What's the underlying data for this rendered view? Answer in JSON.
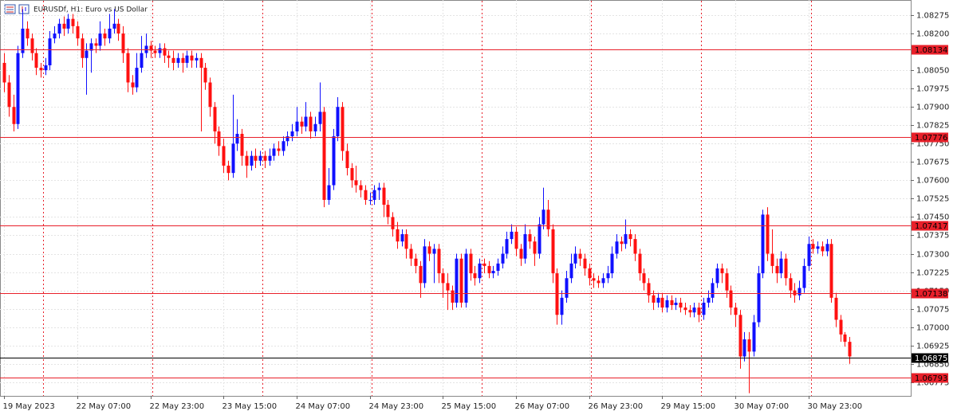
{
  "chart_data": {
    "type": "candlestick",
    "title": "EURUSDf, H1:  Euro vs US Dollar",
    "up_color": "#1010ff",
    "down_color": "#ff1010",
    "level_color": "#e8202a",
    "current_color": "#000000",
    "ylim": [
      1.08337,
      1.06719
    ],
    "xlim": [
      -0.9,
      198.4
    ],
    "yticks": [
      1.08275,
      {
        "value": 1.082,
        "label": "1.08200"
      },
      {
        "value": 1.0805,
        "label": "1.08050"
      },
      1.07975,
      {
        "value": 1.079,
        "label": "1.07900"
      },
      1.07825,
      {
        "value": 1.0775,
        "label": "1.07750"
      },
      1.07675,
      {
        "value": 1.076,
        "label": "1.07600"
      },
      1.07525,
      {
        "value": 1.0745,
        "label": "1.07450"
      },
      1.07375,
      {
        "value": 1.073,
        "label": "1.07300"
      },
      1.07225,
      {
        "value": 1.0715,
        "label": "1.07150"
      },
      1.07075,
      {
        "value": 1.07,
        "label": "1.07000"
      },
      1.06925,
      {
        "value": 1.0685,
        "label": "1.06850"
      },
      1.06775
    ],
    "xticks": [
      {
        "value": 0,
        "label": "19 May 2023"
      },
      {
        "value": 16,
        "label": "22 May 07:00"
      },
      {
        "value": 32,
        "label": "22 May 23:00"
      },
      {
        "value": 48,
        "label": "23 May 15:00"
      },
      {
        "value": 64,
        "label": "24 May 07:00"
      },
      {
        "value": 80,
        "label": "24 May 23:00"
      },
      {
        "value": 96,
        "label": "25 May 15:00"
      },
      {
        "value": 112,
        "label": "26 May 07:00"
      },
      {
        "value": 128,
        "label": "26 May 23:00"
      },
      {
        "value": 144,
        "label": "29 May 15:00"
      },
      {
        "value": 160,
        "label": "30 May 07:00"
      },
      {
        "value": 176,
        "label": "30 May 23:00"
      }
    ],
    "day_separators": [
      8.5,
      32.5,
      56.5,
      80.5,
      104.5,
      128.5,
      152.5,
      176.5
    ],
    "levels": [
      1.08134,
      1.07776,
      1.07417,
      1.07138,
      1.06793
    ],
    "current_price": 1.06875,
    "open": [
      1.0808,
      1.08,
      1.079,
      1.0783,
      1.0812,
      1.0822,
      1.0818,
      1.0812,
      1.0806,
      1.0805,
      1.0807,
      1.0818,
      1.082,
      1.0824,
      1.0822,
      1.0826,
      1.0823,
      1.0818,
      1.081,
      1.0813,
      1.0816,
      1.0815,
      1.082,
      1.0818,
      1.0822,
      1.0824,
      1.082,
      1.0812,
      1.08,
      1.0798,
      1.0806,
      1.0812,
      1.0815,
      1.0813,
      1.0812,
      1.0814,
      1.0811,
      1.081,
      1.0808,
      1.081,
      1.0808,
      1.0811,
      1.0809,
      1.081,
      1.0806,
      1.08,
      1.079,
      1.078,
      1.0774,
      1.0766,
      1.0763,
      1.0775,
      1.0779,
      1.077,
      1.0766,
      1.077,
      1.0768,
      1.077,
      1.0768,
      1.077,
      1.0773,
      1.0772,
      1.0776,
      1.0778,
      1.078,
      1.0784,
      1.0782,
      1.0786,
      1.078,
      1.0783,
      1.0788,
      1.0752,
      1.0758,
      1.0778,
      1.079,
      1.0772,
      1.0765,
      1.076,
      1.0758,
      1.0756,
      1.0752,
      1.0752,
      1.0756,
      1.0757,
      1.075,
      1.0745,
      1.074,
      1.0735,
      1.0738,
      1.0732,
      1.0728,
      1.0725,
      1.0718,
      1.0733,
      1.073,
      1.0732,
      1.0722,
      1.0718,
      1.0715,
      1.071,
      1.0728,
      1.071,
      1.073,
      1.0722,
      1.072,
      1.0726,
      1.0725,
      1.0722,
      1.0723,
      1.0726,
      1.073,
      1.0736,
      1.0739,
      1.0732,
      1.0728,
      1.0738,
      1.0735,
      1.073,
      1.0742,
      1.0748,
      1.074,
      1.0722,
      1.0705,
      1.0712,
      1.072,
      1.0726,
      1.073,
      1.0728,
      1.0724,
      1.072,
      1.0719,
      1.0718,
      1.072,
      1.0722,
      1.073,
      1.0735,
      1.0734,
      1.0738,
      1.0736,
      1.073,
      1.0722,
      1.0718,
      1.0713,
      1.071,
      1.0712,
      1.0708,
      1.0711,
      1.0709,
      1.071,
      1.0708,
      1.0707,
      1.0706,
      1.0708,
      1.0705,
      1.071,
      1.0712,
      1.0718,
      1.0724,
      1.0722,
      1.0715,
      1.0708,
      1.0705,
      1.0688,
      1.0695,
      1.069,
      1.0702,
      1.0722,
      1.0746,
      1.073,
      1.0725,
      1.0722,
      1.0728,
      1.072,
      1.0715,
      1.0713,
      1.0716,
      1.0725,
      1.0734,
      1.0732,
      1.0733,
      1.0731,
      1.0734,
      1.0712,
      1.0703,
      1.0697,
      1.0694
    ],
    "high": [
      1.0812,
      1.0803,
      1.0795,
      1.0815,
      1.083,
      1.0825,
      1.082,
      1.0814,
      1.0808,
      1.081,
      1.0821,
      1.0823,
      1.0826,
      1.0827,
      1.0828,
      1.0828,
      1.0825,
      1.082,
      1.0816,
      1.0818,
      1.0818,
      1.0825,
      1.0822,
      1.0828,
      1.083,
      1.0826,
      1.0823,
      1.0814,
      1.0803,
      1.0812,
      1.0819,
      1.082,
      1.0817,
      1.0815,
      1.0816,
      1.0816,
      1.0813,
      1.0813,
      1.0812,
      1.0812,
      1.0813,
      1.0813,
      1.0812,
      1.0812,
      1.0808,
      1.0802,
      1.0792,
      1.0782,
      1.0777,
      1.0768,
      1.0795,
      1.0785,
      1.0781,
      1.0772,
      1.0772,
      1.0773,
      1.0772,
      1.0772,
      1.0773,
      1.0775,
      1.0776,
      1.0778,
      1.078,
      1.0783,
      1.079,
      1.0786,
      1.0792,
      1.0788,
      1.0786,
      1.08,
      1.079,
      1.0765,
      1.0781,
      1.0794,
      1.0792,
      1.0775,
      1.0767,
      1.0766,
      1.076,
      1.0758,
      1.0755,
      1.0758,
      1.0759,
      1.0759,
      1.0752,
      1.0747,
      1.0743,
      1.074,
      1.074,
      1.0734,
      1.073,
      1.0727,
      1.0736,
      1.0735,
      1.0734,
      1.0734,
      1.0724,
      1.0722,
      1.0717,
      1.073,
      1.073,
      1.0732,
      1.0732,
      1.0725,
      1.0728,
      1.0728,
      1.0727,
      1.0725,
      1.0728,
      1.0733,
      1.0739,
      1.0742,
      1.0741,
      1.0734,
      1.0742,
      1.074,
      1.0737,
      1.0745,
      1.0757,
      1.0752,
      1.0742,
      1.0724,
      1.0715,
      1.0723,
      1.073,
      1.0733,
      1.0732,
      1.073,
      1.0726,
      1.0722,
      1.0721,
      1.0722,
      1.0725,
      1.0733,
      1.0738,
      1.0737,
      1.0744,
      1.074,
      1.0738,
      1.0732,
      1.0724,
      1.072,
      1.0715,
      1.0714,
      1.0714,
      1.0713,
      1.0713,
      1.0712,
      1.0712,
      1.071,
      1.0709,
      1.071,
      1.071,
      1.0712,
      1.0715,
      1.072,
      1.0726,
      1.0726,
      1.0724,
      1.0717,
      1.071,
      1.0707,
      1.0698,
      1.0698,
      1.0705,
      1.0725,
      1.0748,
      1.0749,
      1.074,
      1.0728,
      1.0731,
      1.073,
      1.0722,
      1.0718,
      1.0719,
      1.0728,
      1.0737,
      1.0736,
      1.0735,
      1.0735,
      1.0736,
      1.0736,
      1.0714,
      1.0705,
      1.0698,
      1.0696
    ],
    "low": [
      1.0796,
      1.0786,
      1.078,
      1.0781,
      1.081,
      1.0815,
      1.0809,
      1.0803,
      1.0802,
      1.0803,
      1.0805,
      1.0816,
      1.0818,
      1.0819,
      1.082,
      1.082,
      1.0815,
      1.0806,
      1.0795,
      1.0804,
      1.0812,
      1.0813,
      1.0815,
      1.0816,
      1.082,
      1.0817,
      1.0808,
      1.0796,
      1.0795,
      1.0796,
      1.0804,
      1.081,
      1.081,
      1.081,
      1.081,
      1.0808,
      1.0806,
      1.0805,
      1.0806,
      1.0804,
      1.0806,
      1.0806,
      1.0806,
      1.078,
      1.0797,
      1.0786,
      1.0775,
      1.077,
      1.0763,
      1.076,
      1.0761,
      1.0772,
      1.0766,
      1.0761,
      1.0764,
      1.0765,
      1.0766,
      1.0765,
      1.0766,
      1.0768,
      1.077,
      1.077,
      1.0774,
      1.0776,
      1.0778,
      1.0779,
      1.078,
      1.0777,
      1.0778,
      1.078,
      1.0749,
      1.075,
      1.0756,
      1.0776,
      1.0768,
      1.0762,
      1.0757,
      1.0755,
      1.0753,
      1.075,
      1.075,
      1.075,
      1.0752,
      1.0745,
      1.0742,
      1.0737,
      1.0732,
      1.0733,
      1.0728,
      1.0725,
      1.0722,
      1.0712,
      1.0716,
      1.0727,
      1.0718,
      1.0718,
      1.0712,
      1.0707,
      1.0707,
      1.0708,
      1.0708,
      1.0708,
      1.0719,
      1.0717,
      1.0718,
      1.0722,
      1.072,
      1.072,
      1.0721,
      1.0724,
      1.0728,
      1.0734,
      1.0729,
      1.0725,
      1.0726,
      1.0732,
      1.0725,
      1.0728,
      1.074,
      1.0737,
      1.0718,
      1.0701,
      1.0701,
      1.071,
      1.0718,
      1.0724,
      1.0725,
      1.0721,
      1.0717,
      1.0716,
      1.0716,
      1.0716,
      1.0718,
      1.072,
      1.0728,
      1.0731,
      1.0732,
      1.0733,
      1.0727,
      1.0719,
      1.0715,
      1.071,
      1.0707,
      1.0708,
      1.0706,
      1.0706,
      1.0707,
      1.0707,
      1.0706,
      1.0705,
      1.0704,
      1.0704,
      1.0702,
      1.0703,
      1.0708,
      1.071,
      1.0716,
      1.0718,
      1.0712,
      1.0705,
      1.07,
      1.0683,
      1.0686,
      1.0673,
      1.0688,
      1.07,
      1.072,
      1.0727,
      1.0722,
      1.0718,
      1.072,
      1.0717,
      1.0712,
      1.071,
      1.0711,
      1.0714,
      1.0723,
      1.073,
      1.073,
      1.0729,
      1.0729,
      1.071,
      1.07,
      1.0694,
      1.0692,
      1.0685
    ],
    "close": [
      1.08,
      1.079,
      1.0783,
      1.0812,
      1.0822,
      1.0818,
      1.0812,
      1.0806,
      1.0805,
      1.0807,
      1.0818,
      1.082,
      1.0824,
      1.0822,
      1.0826,
      1.0823,
      1.0818,
      1.081,
      1.0813,
      1.0816,
      1.0815,
      1.082,
      1.0818,
      1.0822,
      1.0824,
      1.082,
      1.0812,
      1.08,
      1.0798,
      1.0806,
      1.0812,
      1.0815,
      1.0813,
      1.0812,
      1.0814,
      1.0811,
      1.081,
      1.0808,
      1.081,
      1.0808,
      1.0811,
      1.0809,
      1.081,
      1.0806,
      1.08,
      1.079,
      1.078,
      1.0774,
      1.0766,
      1.0763,
      1.0775,
      1.0779,
      1.077,
      1.0766,
      1.077,
      1.0768,
      1.077,
      1.0768,
      1.077,
      1.0773,
      1.0772,
      1.0776,
      1.0778,
      1.078,
      1.0784,
      1.0782,
      1.0786,
      1.078,
      1.0783,
      1.0788,
      1.0752,
      1.0758,
      1.0778,
      1.079,
      1.0772,
      1.0765,
      1.076,
      1.0758,
      1.0756,
      1.0752,
      1.0752,
      1.0756,
      1.0757,
      1.075,
      1.0745,
      1.074,
      1.0735,
      1.0738,
      1.0732,
      1.0728,
      1.0725,
      1.0718,
      1.0733,
      1.073,
      1.0732,
      1.0722,
      1.0718,
      1.0715,
      1.071,
      1.0728,
      1.071,
      1.073,
      1.0722,
      1.072,
      1.0726,
      1.0725,
      1.0722,
      1.0723,
      1.0726,
      1.073,
      1.0736,
      1.0739,
      1.0732,
      1.0728,
      1.0738,
      1.0735,
      1.073,
      1.0742,
      1.0748,
      1.074,
      1.0722,
      1.0705,
      1.0712,
      1.072,
      1.0726,
      1.073,
      1.0728,
      1.0724,
      1.072,
      1.0719,
      1.0718,
      1.072,
      1.0722,
      1.073,
      1.0735,
      1.0734,
      1.0738,
      1.0736,
      1.073,
      1.0722,
      1.0718,
      1.0713,
      1.071,
      1.0712,
      1.0708,
      1.0711,
      1.0709,
      1.071,
      1.0708,
      1.0707,
      1.0706,
      1.0708,
      1.0705,
      1.071,
      1.0712,
      1.0718,
      1.0724,
      1.0722,
      1.0715,
      1.0708,
      1.0705,
      1.0688,
      1.0695,
      1.069,
      1.0702,
      1.0722,
      1.0746,
      1.073,
      1.0725,
      1.0722,
      1.0728,
      1.072,
      1.0715,
      1.0713,
      1.0716,
      1.0725,
      1.0734,
      1.0732,
      1.0733,
      1.0731,
      1.0734,
      1.0712,
      1.0703,
      1.0697,
      1.0694,
      1.0688
    ]
  }
}
